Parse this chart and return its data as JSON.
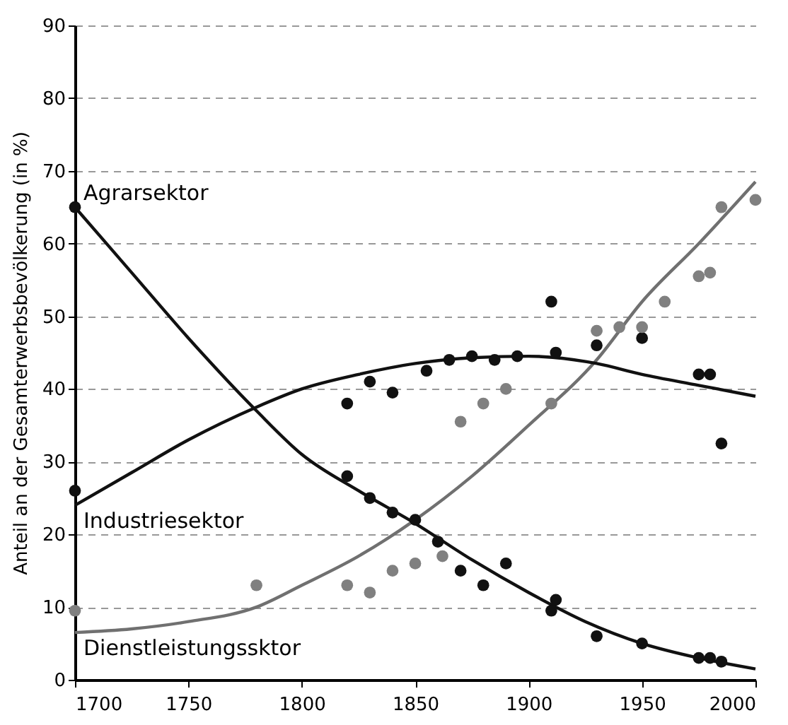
{
  "chart_data": {
    "type": "scatter",
    "ylabel": "Anteil an der Gesamterwerbsbevölkerung (in %)",
    "xlim": [
      1700,
      2000
    ],
    "xticks": [
      1700,
      1750,
      1800,
      1850,
      1900,
      1950,
      2000
    ],
    "ylim": [
      0,
      90
    ],
    "yticks": [
      0,
      10,
      20,
      30,
      40,
      50,
      60,
      70,
      80,
      90
    ],
    "grid": "y",
    "series": [
      {
        "color": "#111111",
        "marker": "circle",
        "x": [
          1700,
          1820,
          1830,
          1840,
          1850,
          1860,
          1870,
          1880,
          1890,
          1910,
          1912,
          1930,
          1950,
          1975,
          1980,
          1985
        ],
        "values": [
          65,
          28,
          25,
          23,
          22,
          19,
          15,
          13,
          16,
          9.5,
          11,
          6,
          5,
          3,
          3,
          2.5
        ]
      },
      {
        "color": "#111111",
        "marker": "circle",
        "x": [
          1700,
          1820,
          1830,
          1840,
          1855,
          1865,
          1875,
          1885,
          1895,
          1910,
          1912,
          1930,
          1950,
          1975,
          1980,
          1985
        ],
        "values": [
          26,
          38,
          41,
          39.5,
          42.5,
          44,
          44.5,
          44,
          44.5,
          52,
          45,
          46,
          47,
          42,
          42,
          32.5
        ]
      },
      {
        "color": "#808080",
        "marker": "circle",
        "x": [
          1700,
          1780,
          1820,
          1830,
          1840,
          1850,
          1862,
          1870,
          1880,
          1890,
          1910,
          1930,
          1940,
          1950,
          1960,
          1975,
          1980,
          1985,
          2000
        ],
        "values": [
          9.5,
          13,
          13,
          12,
          15,
          16,
          17,
          35.5,
          38,
          40,
          38,
          48,
          48.5,
          48.5,
          52,
          55.5,
          56,
          65,
          66
        ]
      },
      {
        "type": "line",
        "name": "Agrarsektor",
        "color": "#111111",
        "x": [
          1700,
          1725,
          1750,
          1780,
          1800,
          1825,
          1850,
          1875,
          1900,
          1925,
          1950,
          1975,
          2000
        ],
        "values": [
          65,
          56,
          47,
          37,
          31,
          26,
          21.5,
          16.5,
          12,
          8,
          5,
          3,
          1.5
        ]
      },
      {
        "type": "line",
        "name": "Industriesektor",
        "color": "#111111",
        "x": [
          1700,
          1725,
          1750,
          1780,
          1800,
          1825,
          1850,
          1875,
          1900,
          1930,
          1950,
          1975,
          2000
        ],
        "values": [
          24,
          28.5,
          33,
          37.5,
          40,
          42,
          43.5,
          44.3,
          44.5,
          43.5,
          42,
          40.5,
          39
        ]
      },
      {
        "type": "line",
        "name": "Dienstleistungssktor",
        "color": "#707070",
        "x": [
          1700,
          1725,
          1750,
          1780,
          1800,
          1825,
          1850,
          1875,
          1900,
          1930,
          1950,
          1975,
          2000
        ],
        "values": [
          6.5,
          7,
          8,
          10,
          13,
          17,
          22,
          28,
          35,
          44,
          52,
          60,
          68.5
        ]
      }
    ]
  }
}
